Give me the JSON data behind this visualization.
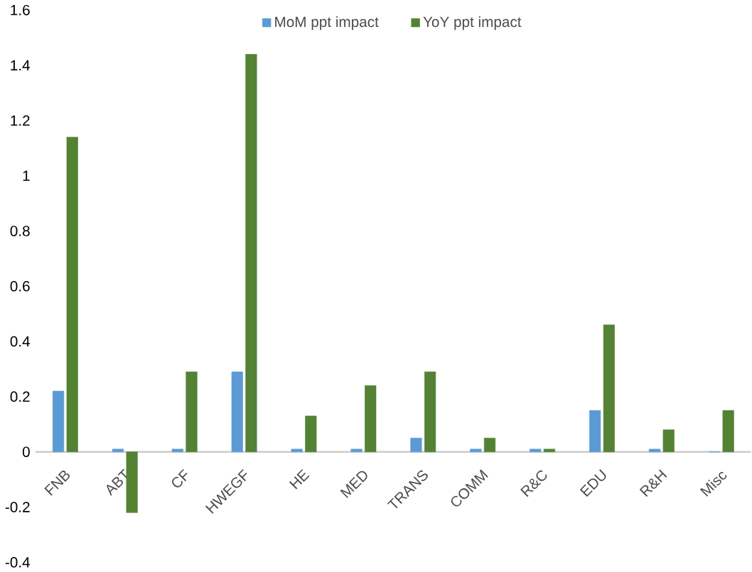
{
  "chart_data": {
    "type": "bar",
    "categories": [
      "FNB",
      "ABT",
      "CF",
      "HWEGF",
      "HE",
      "MED",
      "TRANS",
      "COMM",
      "R&C",
      "EDU",
      "R&H",
      "Misc"
    ],
    "series": [
      {
        "name": "MoM ppt impact",
        "color": "#5b9bd5",
        "values": [
          0.22,
          0.01,
          0.01,
          0.29,
          0.01,
          0.01,
          0.05,
          0.01,
          0.01,
          0.15,
          0.01,
          0
        ]
      },
      {
        "name": "YoY ppt impact",
        "color": "#548235",
        "values": [
          1.14,
          -0.22,
          0.29,
          1.44,
          0.13,
          0.24,
          0.29,
          0.05,
          0.01,
          0.46,
          0.08,
          0.15
        ]
      }
    ],
    "ylim": [
      -0.4,
      1.6
    ],
    "yticks": [
      -0.4,
      -0.2,
      0,
      0.2,
      0.4,
      0.6,
      0.8,
      1,
      1.2,
      1.4,
      1.6
    ],
    "grid": false,
    "legend": "top"
  }
}
